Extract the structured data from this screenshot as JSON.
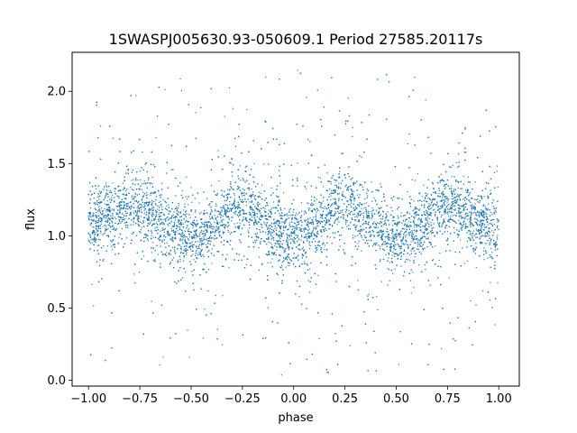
{
  "chart_data": {
    "type": "scatter",
    "title": "1SWASPJ005630.93-050609.1 Period 27585.20117s",
    "xlabel": "phase",
    "ylabel": "flux",
    "xlim": [
      -1.08,
      1.1
    ],
    "ylim": [
      -0.04,
      2.27
    ],
    "xticks": [
      -1.0,
      -0.75,
      -0.5,
      -0.25,
      0.0,
      0.25,
      0.5,
      0.75,
      1.0
    ],
    "xtick_labels": [
      "−1.00",
      "−0.75",
      "−0.50",
      "−0.25",
      "0.00",
      "0.25",
      "0.50",
      "0.75",
      "1.00"
    ],
    "yticks": [
      0.0,
      0.5,
      1.0,
      1.5,
      2.0
    ],
    "ytick_labels": [
      "0.0",
      "0.5",
      "1.0",
      "1.5",
      "2.0"
    ],
    "grid": false,
    "marker_color": "#1f77b4",
    "series": [
      {
        "x_range": [
          -1.0,
          1.0
        ],
        "profile_phase": [
          -1.0,
          -0.9,
          -0.8,
          -0.75,
          -0.7,
          -0.6,
          -0.5,
          -0.45,
          -0.4,
          -0.3,
          -0.25,
          -0.2,
          -0.1,
          0.0,
          0.05,
          0.1,
          0.2,
          0.25,
          0.3,
          0.4,
          0.5,
          0.55,
          0.6,
          0.7,
          0.75,
          0.8,
          0.9,
          1.0
        ],
        "profile_flux": [
          1.06,
          1.15,
          1.22,
          1.2,
          1.15,
          1.05,
          0.98,
          0.98,
          1.05,
          1.17,
          1.2,
          1.16,
          1.05,
          1.0,
          1.0,
          1.06,
          1.2,
          1.23,
          1.18,
          1.07,
          0.98,
          0.98,
          1.04,
          1.18,
          1.22,
          1.18,
          1.09,
          1.03
        ]
      }
    ]
  }
}
